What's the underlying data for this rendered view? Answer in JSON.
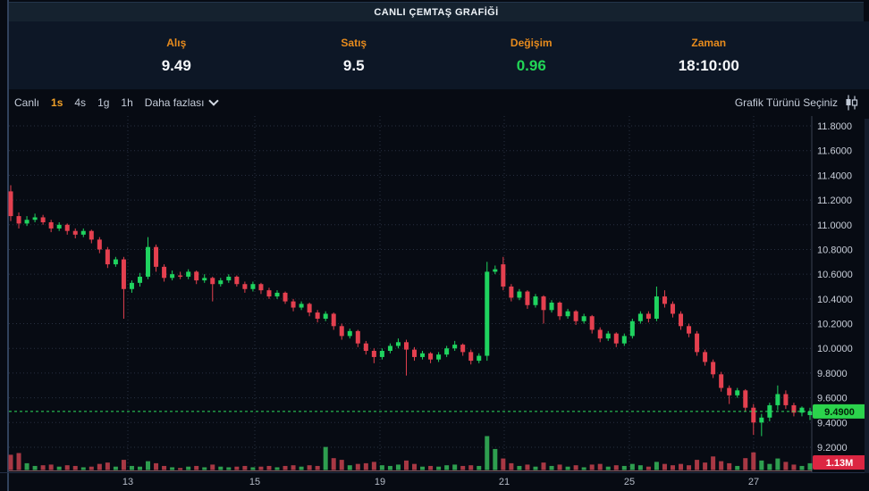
{
  "window": {
    "title": "CANLI ÇEMTAŞ GRAFİĞİ"
  },
  "quote": {
    "fields": [
      {
        "label": "Alış",
        "value": "9.49",
        "color": "white"
      },
      {
        "label": "Satış",
        "value": "9.5",
        "color": "white"
      },
      {
        "label": "Değişim",
        "value": "0.96",
        "color": "green"
      },
      {
        "label": "Zaman",
        "value": "18:10:00",
        "color": "white"
      }
    ]
  },
  "toolbar": {
    "timeframes": [
      {
        "label": "Canlı",
        "active": false
      },
      {
        "label": "1s",
        "active": true
      },
      {
        "label": "4s",
        "active": false
      },
      {
        "label": "1g",
        "active": false
      },
      {
        "label": "1h",
        "active": false
      }
    ],
    "more_label": "Daha fazlası",
    "chart_type_label": "Grafik Türünü Seçiniz",
    "chart_type_icon": "candlestick-icon"
  },
  "chart_data": {
    "type": "candlestick",
    "title": "CANLI ÇEMTAŞ GRAFİĞİ",
    "grid": true,
    "legend": "none",
    "ylim": [
      9.2,
      11.8
    ],
    "y_ticks": [
      {
        "label": "11.8000",
        "value": 11.8
      },
      {
        "label": "11.6000",
        "value": 11.6
      },
      {
        "label": "11.4000",
        "value": 11.4
      },
      {
        "label": "11.2000",
        "value": 11.2
      },
      {
        "label": "11.0000",
        "value": 11.0
      },
      {
        "label": "10.8000",
        "value": 10.8
      },
      {
        "label": "10.6000",
        "value": 10.6
      },
      {
        "label": "10.4000",
        "value": 10.4
      },
      {
        "label": "10.2000",
        "value": 10.2
      },
      {
        "label": "10.0000",
        "value": 10.0
      },
      {
        "label": "9.8000",
        "value": 9.8
      },
      {
        "label": "9.6000",
        "value": 9.6
      },
      {
        "label": "9.4000",
        "value": 9.4
      },
      {
        "label": "9.2000",
        "value": 9.2
      }
    ],
    "x_ticks": [
      {
        "label": "13",
        "px": 143
      },
      {
        "label": "15",
        "px": 285
      },
      {
        "label": "19",
        "px": 425
      },
      {
        "label": "21",
        "px": 564
      },
      {
        "label": "25",
        "px": 704
      },
      {
        "label": "27",
        "px": 843
      }
    ],
    "last_price": 9.49,
    "last_price_label": "9.4900",
    "volume_badge": "1.13M",
    "colors": {
      "up": "#1fd35f",
      "down": "#e4404f",
      "vol_up": "#2e9e4f",
      "vol_down": "#a83844",
      "last_price_line": "#2ee05f",
      "badge_price_bg": "#2bd34c",
      "badge_price_text": "#04220a",
      "badge_volume_bg": "#dc2642",
      "badge_volume_text": "#ffffff",
      "axis_text": "#c9cfda",
      "x_text": "#b4bbc7",
      "grid": "rgba(125,148,185,0.28)"
    },
    "candles": [
      [
        11.27,
        11.32,
        11.03,
        11.07
      ],
      [
        11.07,
        11.1,
        10.97,
        11.01
      ],
      [
        11.01,
        11.07,
        10.99,
        11.04
      ],
      [
        11.04,
        11.09,
        11.02,
        11.06
      ],
      [
        11.06,
        11.08,
        11.0,
        11.02
      ],
      [
        11.02,
        11.04,
        10.94,
        10.97
      ],
      [
        10.97,
        11.02,
        10.95,
        11.0
      ],
      [
        11.0,
        11.01,
        10.92,
        10.95
      ],
      [
        10.95,
        10.97,
        10.89,
        10.92
      ],
      [
        10.92,
        10.97,
        10.9,
        10.95
      ],
      [
        10.95,
        10.96,
        10.85,
        10.88
      ],
      [
        10.88,
        10.9,
        10.77,
        10.8
      ],
      [
        10.8,
        10.82,
        10.65,
        10.68
      ],
      [
        10.68,
        10.74,
        10.66,
        10.72
      ],
      [
        10.72,
        10.74,
        10.24,
        10.48
      ],
      [
        10.48,
        10.55,
        10.45,
        10.53
      ],
      [
        10.53,
        10.61,
        10.5,
        10.58
      ],
      [
        10.58,
        10.9,
        10.56,
        10.82
      ],
      [
        10.82,
        10.84,
        10.62,
        10.66
      ],
      [
        10.66,
        10.68,
        10.54,
        10.57
      ],
      [
        10.57,
        10.63,
        10.55,
        10.6
      ],
      [
        10.59,
        10.62,
        10.56,
        10.58
      ],
      [
        10.58,
        10.64,
        10.56,
        10.62
      ],
      [
        10.62,
        10.63,
        10.52,
        10.55
      ],
      [
        10.55,
        10.6,
        10.53,
        10.57
      ],
      [
        10.57,
        10.58,
        10.38,
        10.52
      ],
      [
        10.52,
        10.57,
        10.5,
        10.55
      ],
      [
        10.55,
        10.6,
        10.53,
        10.58
      ],
      [
        10.58,
        10.59,
        10.5,
        10.52
      ],
      [
        10.52,
        10.54,
        10.45,
        10.48
      ],
      [
        10.48,
        10.54,
        10.46,
        10.52
      ],
      [
        10.52,
        10.53,
        10.44,
        10.47
      ],
      [
        10.47,
        10.49,
        10.4,
        10.42
      ],
      [
        10.42,
        10.47,
        10.4,
        10.45
      ],
      [
        10.45,
        10.46,
        10.36,
        10.38
      ],
      [
        10.38,
        10.4,
        10.3,
        10.33
      ],
      [
        10.33,
        10.38,
        10.31,
        10.36
      ],
      [
        10.36,
        10.37,
        10.26,
        10.29
      ],
      [
        10.29,
        10.31,
        10.21,
        10.24
      ],
      [
        10.24,
        10.3,
        10.22,
        10.28
      ],
      [
        10.28,
        10.29,
        10.15,
        10.18
      ],
      [
        10.18,
        10.2,
        10.07,
        10.1
      ],
      [
        10.1,
        10.16,
        10.08,
        10.14
      ],
      [
        10.14,
        10.15,
        10.01,
        10.04
      ],
      [
        10.04,
        10.06,
        9.95,
        9.98
      ],
      [
        9.98,
        10.0,
        9.88,
        9.93
      ],
      [
        9.93,
        10.0,
        9.91,
        9.98
      ],
      [
        9.98,
        10.04,
        9.96,
        10.02
      ],
      [
        10.02,
        10.08,
        10.0,
        10.05
      ],
      [
        10.05,
        10.07,
        9.78,
        9.99
      ],
      [
        9.99,
        10.01,
        9.9,
        9.93
      ],
      [
        9.93,
        9.98,
        9.91,
        9.96
      ],
      [
        9.96,
        9.97,
        9.88,
        9.91
      ],
      [
        9.91,
        9.97,
        9.89,
        9.95
      ],
      [
        9.95,
        10.02,
        9.93,
        10.0
      ],
      [
        10.0,
        10.06,
        9.98,
        10.03
      ],
      [
        10.03,
        10.04,
        9.94,
        9.97
      ],
      [
        9.97,
        9.99,
        9.87,
        9.9
      ],
      [
        9.9,
        9.96,
        9.88,
        9.94
      ],
      [
        9.94,
        10.7,
        9.9,
        10.62
      ],
      [
        10.62,
        10.67,
        10.6,
        10.64
      ],
      [
        10.68,
        10.74,
        10.47,
        10.5
      ],
      [
        10.5,
        10.52,
        10.38,
        10.41
      ],
      [
        10.41,
        10.48,
        10.39,
        10.46
      ],
      [
        10.46,
        10.47,
        10.32,
        10.35
      ],
      [
        10.35,
        10.44,
        10.33,
        10.42
      ],
      [
        10.42,
        10.43,
        10.2,
        10.31
      ],
      [
        10.31,
        10.39,
        10.29,
        10.37
      ],
      [
        10.37,
        10.38,
        10.23,
        10.26
      ],
      [
        10.26,
        10.32,
        10.24,
        10.3
      ],
      [
        10.3,
        10.31,
        10.19,
        10.22
      ],
      [
        10.22,
        10.28,
        10.2,
        10.26
      ],
      [
        10.26,
        10.27,
        10.12,
        10.15
      ],
      [
        10.15,
        10.17,
        10.05,
        10.08
      ],
      [
        10.08,
        10.14,
        10.06,
        10.12
      ],
      [
        10.12,
        10.13,
        10.01,
        10.04
      ],
      [
        10.04,
        10.12,
        10.02,
        10.1
      ],
      [
        10.1,
        10.24,
        10.08,
        10.22
      ],
      [
        10.22,
        10.3,
        10.2,
        10.28
      ],
      [
        10.28,
        10.3,
        10.21,
        10.24
      ],
      [
        10.24,
        10.5,
        10.22,
        10.42
      ],
      [
        10.42,
        10.47,
        10.33,
        10.36
      ],
      [
        10.36,
        10.38,
        10.25,
        10.28
      ],
      [
        10.28,
        10.3,
        10.15,
        10.18
      ],
      [
        10.18,
        10.2,
        10.09,
        10.12
      ],
      [
        10.12,
        10.14,
        9.94,
        9.97
      ],
      [
        9.97,
        9.99,
        9.86,
        9.89
      ],
      [
        9.89,
        9.91,
        9.76,
        9.79
      ],
      [
        9.79,
        9.81,
        9.65,
        9.68
      ],
      [
        9.68,
        9.7,
        9.55,
        9.62
      ],
      [
        9.62,
        9.68,
        9.6,
        9.66
      ],
      [
        9.66,
        9.67,
        9.49,
        9.52
      ],
      [
        9.52,
        9.55,
        9.3,
        9.4
      ],
      [
        9.4,
        9.47,
        9.29,
        9.44
      ],
      [
        9.44,
        9.56,
        9.41,
        9.54
      ],
      [
        9.54,
        9.7,
        9.5,
        9.63
      ],
      [
        9.63,
        9.66,
        9.51,
        9.54
      ],
      [
        9.54,
        9.56,
        9.45,
        9.48
      ],
      [
        9.48,
        9.53,
        9.45,
        9.52
      ],
      [
        9.46,
        9.52,
        9.42,
        9.49
      ]
    ],
    "volumes": [
      0.45,
      0.5,
      0.2,
      0.12,
      0.14,
      0.16,
      0.1,
      0.14,
      0.12,
      0.08,
      0.1,
      0.18,
      0.22,
      0.1,
      0.3,
      0.12,
      0.1,
      0.26,
      0.2,
      0.12,
      0.08,
      0.06,
      0.1,
      0.12,
      0.08,
      0.16,
      0.1,
      0.08,
      0.1,
      0.12,
      0.08,
      0.1,
      0.12,
      0.08,
      0.12,
      0.14,
      0.1,
      0.14,
      0.12,
      0.68,
      0.35,
      0.3,
      0.14,
      0.18,
      0.2,
      0.24,
      0.14,
      0.12,
      0.16,
      0.28,
      0.18,
      0.1,
      0.12,
      0.1,
      0.14,
      0.16,
      0.12,
      0.14,
      0.12,
      1.0,
      0.62,
      0.34,
      0.2,
      0.12,
      0.16,
      0.1,
      0.22,
      0.12,
      0.16,
      0.1,
      0.14,
      0.08,
      0.16,
      0.18,
      0.1,
      0.14,
      0.12,
      0.18,
      0.14,
      0.1,
      0.24,
      0.18,
      0.14,
      0.18,
      0.14,
      0.3,
      0.22,
      0.4,
      0.26,
      0.2,
      0.12,
      0.35,
      0.52,
      0.28,
      0.18,
      0.34,
      0.24,
      0.16,
      0.12,
      0.2
    ]
  }
}
